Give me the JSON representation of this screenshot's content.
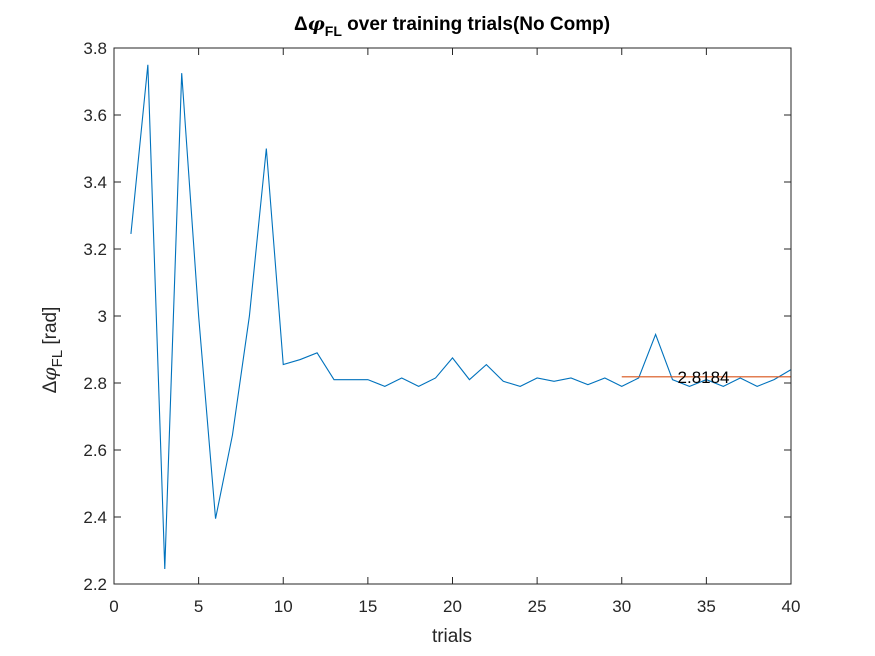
{
  "chart_data": {
    "type": "line",
    "title": {
      "prefix": "Δ",
      "symbol": "φ",
      "subscript": "FL",
      "suffix": " over training trials(No Comp)"
    },
    "xlabel": "trials",
    "ylabel": {
      "prefix": "Δ",
      "symbol": "φ",
      "subscript": "FL",
      "suffix": " [rad]"
    },
    "xlim": [
      0,
      40
    ],
    "ylim": [
      2.2,
      3.8
    ],
    "xticks": [
      0,
      5,
      10,
      15,
      20,
      25,
      30,
      35,
      40
    ],
    "xtick_labels": [
      "0",
      "5",
      "10",
      "15",
      "20",
      "25",
      "30",
      "35",
      "40"
    ],
    "yticks": [
      2.2,
      2.4,
      2.6,
      2.8,
      3.0,
      3.2,
      3.4,
      3.6,
      3.8
    ],
    "ytick_labels": [
      "2.2",
      "2.4",
      "2.6",
      "2.8",
      "3",
      "3.2",
      "3.4",
      "3.6",
      "3.8"
    ],
    "grid": false,
    "series": [
      {
        "color": "#0072BD",
        "x": [
          1,
          2,
          3,
          4,
          5,
          6,
          7,
          8,
          9,
          10,
          11,
          12,
          13,
          14,
          15,
          16,
          17,
          18,
          19,
          20,
          21,
          22,
          23,
          24,
          25,
          26,
          27,
          28,
          29,
          30,
          31,
          32,
          33,
          34,
          35,
          36,
          37,
          38,
          39,
          40
        ],
        "y": [
          3.245,
          3.75,
          2.245,
          3.725,
          3.0,
          2.395,
          2.645,
          3.0,
          3.5,
          2.855,
          2.87,
          2.89,
          2.81,
          2.81,
          2.81,
          2.79,
          2.815,
          2.79,
          2.815,
          2.875,
          2.81,
          2.855,
          2.805,
          2.79,
          2.815,
          2.805,
          2.815,
          2.795,
          2.815,
          2.79,
          2.815,
          2.945,
          2.81,
          2.79,
          2.81,
          2.79,
          2.815,
          2.79,
          2.81,
          2.84
        ]
      },
      {
        "color": "#D95319",
        "x": [
          30,
          40
        ],
        "y": [
          2.8184,
          2.8184
        ]
      }
    ],
    "annotations": [
      {
        "text": "2.8184",
        "x": 33,
        "y": 2.8184
      }
    ]
  }
}
